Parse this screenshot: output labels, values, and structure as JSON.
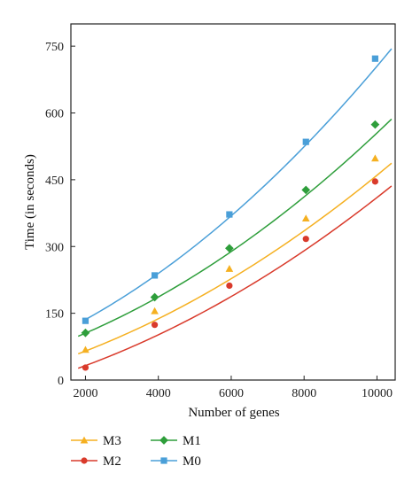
{
  "chart_data": {
    "type": "line",
    "xlabel": "Number of genes",
    "ylabel": "Time (in seconds)",
    "xlim": [
      1600,
      10500
    ],
    "ylim": [
      0,
      800
    ],
    "x_ticks": [
      2000,
      4000,
      6000,
      8000,
      10000
    ],
    "y_ticks": [
      0,
      150,
      300,
      450,
      600,
      750
    ],
    "grid": false,
    "legend_placement": "bottom",
    "series": [
      {
        "name": "M0",
        "color": "#4a9fd8",
        "marker": "square",
        "x": [
          2000,
          3900,
          5950,
          8050,
          9950
        ],
        "y": [
          133,
          235,
          372,
          535,
          722
        ],
        "curve": {
          "a": 3.22e-06,
          "b": 0.0325,
          "c": 58,
          "x_range": [
            2000,
            10400
          ]
        }
      },
      {
        "name": "M1",
        "color": "#2e9e3b",
        "marker": "diamond",
        "x": [
          2000,
          3900,
          5950,
          8050,
          9950
        ],
        "y": [
          106,
          186,
          296,
          427,
          574
        ],
        "curve": {
          "a": 2.6e-06,
          "b": 0.025,
          "c": 45,
          "x_range": [
            1800,
            10400
          ]
        }
      },
      {
        "name": "M3",
        "color": "#f5b021",
        "marker": "triangle",
        "x": [
          2000,
          3900,
          5950,
          8050,
          9950
        ],
        "y": [
          68,
          155,
          250,
          363,
          498
        ],
        "curve": {
          "a": 2.18e-06,
          "b": 0.0232,
          "c": 10,
          "x_range": [
            1800,
            10400
          ]
        }
      },
      {
        "name": "M2",
        "color": "#d93a2b",
        "marker": "circle",
        "x": [
          2000,
          3900,
          5950,
          8050,
          9950
        ],
        "y": [
          28,
          124,
          212,
          317,
          446
        ],
        "curve": {
          "a": 2.1e-06,
          "b": 0.022,
          "c": -20,
          "x_range": [
            1800,
            10400
          ]
        }
      }
    ],
    "legend_order": [
      "M3",
      "M1",
      "M2",
      "M0"
    ]
  }
}
